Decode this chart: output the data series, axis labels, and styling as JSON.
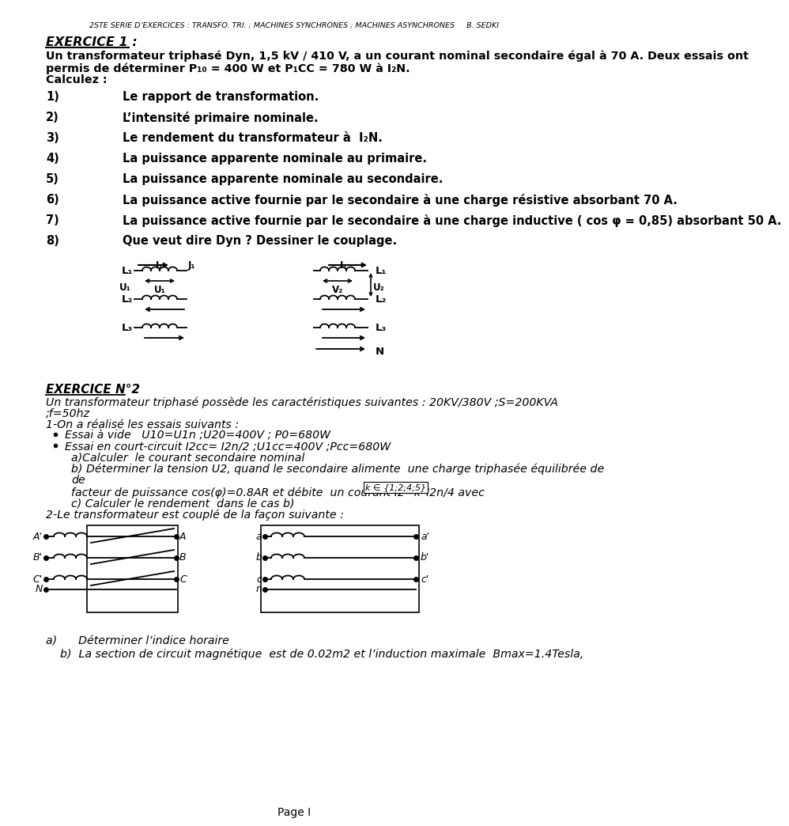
{
  "bg_color": "#ffffff",
  "header": "2STE SERIE D’EXERCICES : TRANSFO. TRI. ; MACHINES SYNCHRONES ; MACHINES ASYNCHRONES     B. SEDKI",
  "ex1_title": "EXERCICE 1 :",
  "ex1_line1": "Un transformateur triphasé Dyn, 1,5 kV / 410 V, a un courant nominal secondaire égal à 70 A. Deux essais ont",
  "ex1_line2": "permis de déterminer P₁₀ = 400 W et P₁CC = 780 W à I₂N.",
  "ex1_line3": "Calculez :",
  "questions_ex1": [
    [
      "1)",
      "Le rapport de transformation."
    ],
    [
      "2)",
      "L’intensité primaire nominale."
    ],
    [
      "3)",
      "Le rendement du transformateur à  I₂N."
    ],
    [
      "4)",
      "La puissance apparente nominale au primaire."
    ],
    [
      "5)",
      "La puissance apparente nominale au secondaire."
    ],
    [
      "6)",
      "La puissance active fournie par le secondaire à une charge résistive absorbant 70 A."
    ],
    [
      "7)",
      "La puissance active fournie par le secondaire à une charge inductive ( cos φ = 0,85) absorbant 50 A."
    ],
    [
      "8)",
      "Que veut dire Dyn ? Dessiner le couplage."
    ]
  ],
  "ex2_title": "EXERCICE N°2",
  "ex2_lines": [
    "Un transformateur triphasé possède les caractéristiques suivantes : 20KV/380V ;S=200KVA",
    ";f=50hz",
    "1-On a réalisé les essais suivants :"
  ],
  "ex2_bullets": [
    "Essai à vide   U10=U1n ;U20=400V ; P0=680W",
    "Essai en court-circuit I2cc= I2n/2 ;U1cc=400V ;Pcc=680W"
  ],
  "ex2_after_bullets": [
    "a)Calculer  le courant secondaire nominal",
    "b) Déterminer la tension U2, quand le secondaire alimente  une charge triphasée équilibrée de",
    "de"
  ],
  "ex2_kline": "facteur de puissance cos(φ)=0.8AR et débite  un courant I2=k*I2n/4 avec",
  "ex2_kset": "k ∈ {1;2;4;5}",
  "ex2_c_line": "c) Calculer le rendement  dans le cas b)",
  "ex2_coup_line": "2-Le transformateur est couplé de la façon suivante :",
  "ex2_footer_a": "a)      Déterminer l’indice horaire",
  "ex2_footer_b": "    b)  La section de circuit magnétique  est de 0.02m2 et l’induction maximale  Bmax=1.4Tesla,",
  "page_footer": "Page I",
  "circ1_primary_labels": [
    "L₁",
    "L₂",
    "L₃"
  ],
  "circ1_secondary_labels": [
    "L₁",
    "L₂",
    "L₃",
    "N"
  ],
  "circ2_left_in": [
    "A'",
    "B'",
    "C'",
    "N"
  ],
  "circ2_left_out": [
    "A",
    "B",
    "C"
  ],
  "circ2_right_in": [
    "a",
    "b",
    "c",
    "n"
  ],
  "circ2_right_out": [
    "a'",
    "b'",
    "c'"
  ]
}
